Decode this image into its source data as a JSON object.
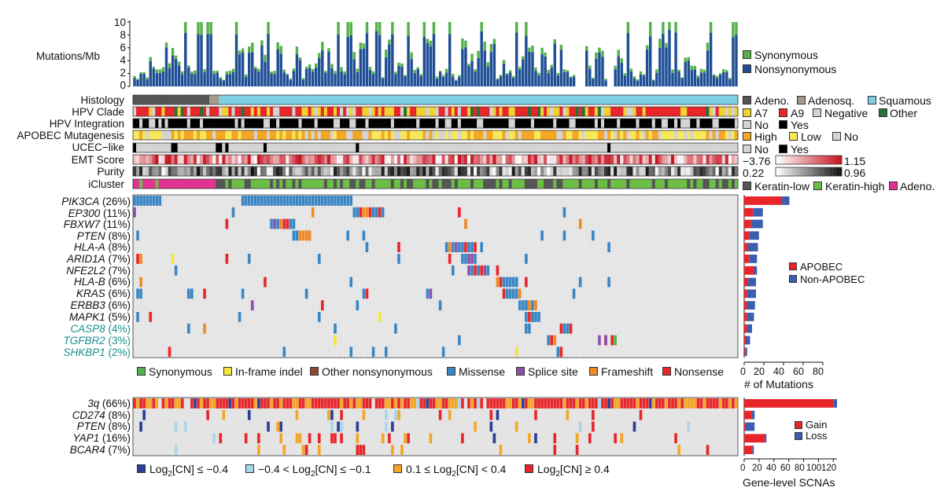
{
  "chart_data": {
    "type": "oncoprint",
    "colors": {
      "synonymous": "#55b14a",
      "nonsynonymous": "#1f4e96",
      "adeno": "#555555",
      "adenosq": "#a09a88",
      "squamous": "#7ecfe3",
      "a7": "#f2d22e",
      "a9": "#e8262a",
      "negative": "#d4d4d4",
      "other": "#2b6e3a",
      "high": "#f5a623",
      "low": "#f7e85a",
      "no": "#d4d4d4",
      "yes": "#000000",
      "keratin_low": "#555555",
      "keratin_high": "#6cbd45",
      "adeno_cluster": "#e0338f",
      "missense": "#3a86c4",
      "inframe": "#f5e43a",
      "other_nonsyn": "#8b4a2b",
      "splice": "#8e4fa8",
      "frameshift": "#f08a24",
      "nonsense": "#e8262a",
      "grid_bg": "#e4e4e4",
      "deep_loss": "#2b3f99",
      "shallow_loss": "#a8d5ea",
      "shallow_gain": "#f5a623",
      "amp": "#e8262a",
      "apobec": "#e8262a",
      "non_apobec": "#3a5fb0",
      "gain": "#e8262a",
      "loss": "#3a5fb0"
    },
    "tmb": {
      "ylabel": "Mutations/Mb",
      "yticks": [
        "10",
        "8",
        "6",
        "4",
        "2",
        "0"
      ],
      "ylim": [
        0,
        10
      ],
      "legend": [
        "Synonymous",
        "Nonsynonymous"
      ],
      "n_samples": 190
    },
    "tracks": [
      {
        "label": "Histology",
        "legend": [
          "Adeno.",
          "Adenosq.",
          "Squamous"
        ]
      },
      {
        "label": "HPV Clade",
        "legend": [
          "A7",
          "A9",
          "Negative",
          "Other"
        ]
      },
      {
        "label": "HPV Integration",
        "legend": [
          "No",
          "Yes"
        ]
      },
      {
        "label": "APOBEC Mutagenesis",
        "legend": [
          "High",
          "Low",
          "No"
        ]
      },
      {
        "label": "UCEC−like",
        "legend": [
          "No",
          "Yes"
        ]
      },
      {
        "label": "EMT Score",
        "legend": [
          "−3.76",
          "1.15"
        ]
      },
      {
        "label": "Purity",
        "legend": [
          "0.22",
          "0.96"
        ]
      },
      {
        "label": "iCluster",
        "legend": [
          "Keratin-low",
          "Keratin-high",
          "Adeno."
        ]
      }
    ],
    "genes": [
      {
        "name": "PIK3CA",
        "pct": "(26%)",
        "apobec": 38,
        "non_apobec": 8
      },
      {
        "name": "EP300",
        "pct": "(11%)",
        "apobec": 9,
        "non_apobec": 10
      },
      {
        "name": "FBXW7",
        "pct": "(11%)",
        "apobec": 7,
        "non_apobec": 12
      },
      {
        "name": "PTEN",
        "pct": "(8%)",
        "apobec": 5,
        "non_apobec": 10
      },
      {
        "name": "HLA-A",
        "pct": "(8%)",
        "apobec": 4,
        "non_apobec": 10
      },
      {
        "name": "ARID1A",
        "pct": "(7%)",
        "apobec": 5,
        "non_apobec": 8
      },
      {
        "name": "NFE2L2",
        "pct": "(7%)",
        "apobec": 10,
        "non_apobec": 3
      },
      {
        "name": "HLA-B",
        "pct": "(6%)",
        "apobec": 4,
        "non_apobec": 8
      },
      {
        "name": "KRAS",
        "pct": "(6%)",
        "apobec": 3,
        "non_apobec": 9
      },
      {
        "name": "ERBB3",
        "pct": "(6%)",
        "apobec": 3,
        "non_apobec": 8
      },
      {
        "name": "MAPK1",
        "pct": "(5%)",
        "apobec": 3,
        "non_apobec": 7
      },
      {
        "name": "CASP8",
        "pct": "(4%)",
        "apobec": 3,
        "non_apobec": 5
      },
      {
        "name": "TGFBR2",
        "pct": "(3%)",
        "apobec": 2,
        "non_apobec": 4
      },
      {
        "name": "SHKBP1",
        "pct": "(2%)",
        "apobec": 1,
        "non_apobec": 2
      }
    ],
    "mut_legend": [
      "Synonymous",
      "In-frame indel",
      "Other nonsynonymous",
      "Missense",
      "Splice site",
      "Frameshift",
      "Nonsense"
    ],
    "mut_bar": {
      "xlabel": "# of Mutations",
      "xticks": [
        "0",
        "20",
        "40",
        "60",
        "80"
      ],
      "xlim": [
        0,
        80
      ],
      "legend": [
        "APOBEC",
        "Non-APOBEC"
      ]
    },
    "cnv": [
      {
        "name": "3q",
        "pct": "(66%)",
        "gain": 120,
        "loss": 5
      },
      {
        "name": "CD274",
        "pct": "(8%)",
        "gain": 10,
        "loss": 4
      },
      {
        "name": "PTEN",
        "pct": "(8%)",
        "gain": 2,
        "loss": 12
      },
      {
        "name": "YAP1",
        "pct": "(16%)",
        "gain": 28,
        "loss": 2
      },
      {
        "name": "BCAR4",
        "pct": "(7%)",
        "gain": 11,
        "loss": 2
      }
    ],
    "cnv_legend": [
      "Log",
      "2",
      "[CN] ≤ −0.4",
      "−0.4 < Log",
      "2",
      "[CN] ≤ −0.1",
      "0.1 ≤ Log",
      "2",
      "[CN] < 0.4",
      "Log",
      "2",
      "[CN] ≥ 0.4"
    ],
    "cnv_bar": {
      "xlabel": "Gene-level SCNAs",
      "xticks": [
        "0",
        "20",
        "40",
        "60",
        "80",
        "100",
        "120"
      ],
      "xlim": [
        0,
        125
      ],
      "legend": [
        "Gain",
        "Loss"
      ]
    }
  }
}
